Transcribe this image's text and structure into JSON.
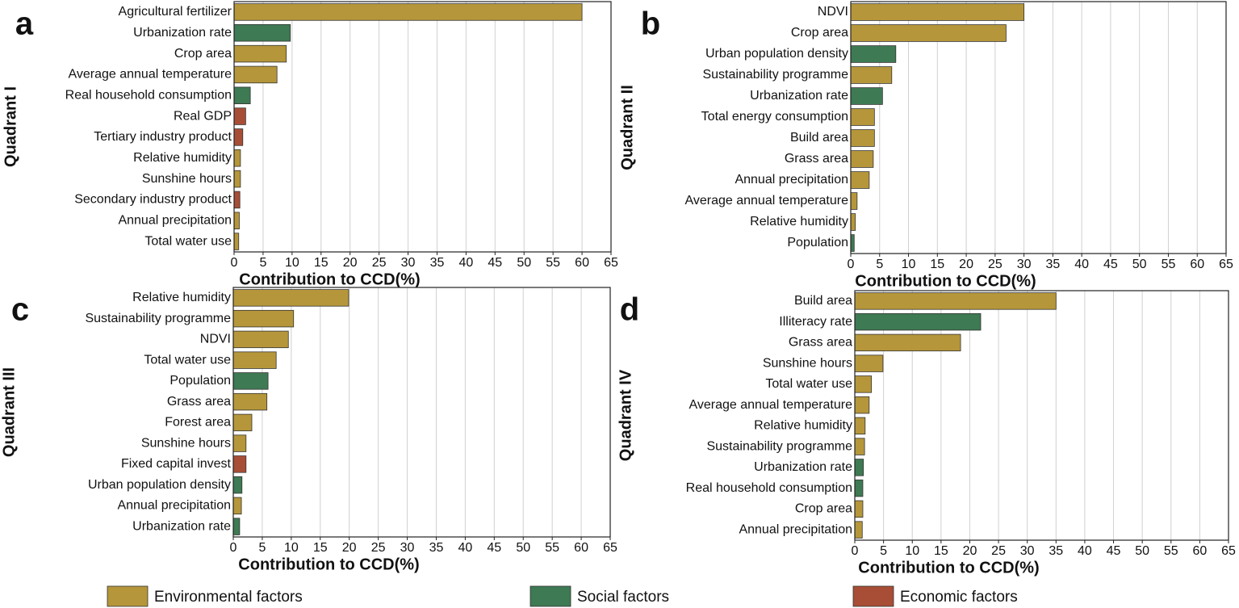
{
  "chart_data": [
    {
      "type": "bar",
      "orientation": "horizontal",
      "panel": "a",
      "ylabel": "Quadrant I",
      "xlabel": "Contribution to CCD(%)",
      "categories": [
        "Agricultural fertilizer",
        "Urbanization rate",
        "Crop area",
        "Average annual temperature",
        "Real household consumption",
        "Real GDP",
        "Tertiary industry product",
        "Relative humidity",
        "Sunshine hours",
        "Secondary industry product",
        "Annual precipitation",
        "Total water use"
      ],
      "values": [
        60.0,
        9.7,
        9.0,
        7.4,
        2.8,
        2.0,
        1.5,
        1.1,
        1.1,
        1.0,
        0.9,
        0.8
      ],
      "colors": [
        "#b5963a",
        "#3e7a53",
        "#b5963a",
        "#b5963a",
        "#3e7a53",
        "#a84e36",
        "#a84e36",
        "#b5963a",
        "#b5963a",
        "#a84e36",
        "#b5963a",
        "#b5963a"
      ],
      "xlim": [
        0,
        65
      ],
      "xticks": [
        0,
        5,
        10,
        15,
        20,
        25,
        30,
        35,
        40,
        45,
        50,
        55,
        60,
        65
      ],
      "grid": true
    },
    {
      "type": "bar",
      "orientation": "horizontal",
      "panel": "b",
      "ylabel": "Quadrant II",
      "xlabel": "Contribution to CCD(%)",
      "categories": [
        "NDVI",
        "Crop area",
        "Urban population density",
        "Sustainability programme",
        "Urbanization rate",
        "Total energy consumption",
        "Build area",
        "Grass area",
        "Annual precipitation",
        "Average annual temperature",
        "Relative humidity",
        "Population"
      ],
      "values": [
        30.0,
        26.9,
        7.8,
        7.1,
        5.5,
        4.1,
        4.1,
        3.9,
        3.2,
        1.1,
        0.8,
        0.6
      ],
      "colors": [
        "#b5963a",
        "#b5963a",
        "#3e7a53",
        "#b5963a",
        "#3e7a53",
        "#b5963a",
        "#b5963a",
        "#b5963a",
        "#b5963a",
        "#b5963a",
        "#b5963a",
        "#3e7a53"
      ],
      "xlim": [
        0,
        65
      ],
      "xticks": [
        0,
        5,
        10,
        15,
        20,
        25,
        30,
        35,
        40,
        45,
        50,
        55,
        60,
        65
      ],
      "grid": true
    },
    {
      "type": "bar",
      "orientation": "horizontal",
      "panel": "c",
      "ylabel": "Quadrant III",
      "xlabel": "Contribution to CCD(%)",
      "categories": [
        "Relative humidity",
        "Sustainability programme",
        "NDVI",
        "Total water use",
        "Population",
        "Grass area",
        "Forest area",
        "Sunshine hours",
        "Fixed capital invest",
        "Urban population density",
        "Annual precipitation",
        "Urbanization rate"
      ],
      "values": [
        19.9,
        10.4,
        9.5,
        7.4,
        6.0,
        5.8,
        3.2,
        2.2,
        2.2,
        1.5,
        1.4,
        1.1
      ],
      "colors": [
        "#b5963a",
        "#b5963a",
        "#b5963a",
        "#b5963a",
        "#3e7a53",
        "#b5963a",
        "#b5963a",
        "#b5963a",
        "#a84e36",
        "#3e7a53",
        "#b5963a",
        "#3e7a53"
      ],
      "xlim": [
        0,
        65
      ],
      "xticks": [
        0,
        5,
        10,
        15,
        20,
        25,
        30,
        35,
        40,
        45,
        50,
        55,
        60,
        65
      ],
      "grid": true
    },
    {
      "type": "bar",
      "orientation": "horizontal",
      "panel": "d",
      "ylabel": "Quadrant IV",
      "xlabel": "Contribution to CCD(%)",
      "categories": [
        "Build area",
        "Illiteracy rate",
        "Grass area",
        "Sunshine hours",
        "Total water use",
        "Average annual temperature",
        "Relative humidity",
        "Sustainability programme",
        "Urbanization rate",
        "Real household consumption",
        "Crop area",
        "Annual precipitation"
      ],
      "values": [
        35.0,
        21.9,
        18.4,
        4.9,
        2.9,
        2.5,
        1.8,
        1.7,
        1.5,
        1.4,
        1.4,
        1.3
      ],
      "colors": [
        "#b5963a",
        "#3e7a53",
        "#b5963a",
        "#b5963a",
        "#b5963a",
        "#b5963a",
        "#b5963a",
        "#b5963a",
        "#3e7a53",
        "#3e7a53",
        "#b5963a",
        "#b5963a"
      ],
      "xlim": [
        0,
        65
      ],
      "xticks": [
        0,
        5,
        10,
        15,
        20,
        25,
        30,
        35,
        40,
        45,
        50,
        55,
        60,
        65
      ],
      "grid": true
    }
  ],
  "legend": [
    {
      "name": "Environmental factors",
      "color": "#b5963a"
    },
    {
      "name": "Social factors",
      "color": "#3e7a53"
    },
    {
      "name": "Economic factors",
      "color": "#a84e36"
    }
  ]
}
